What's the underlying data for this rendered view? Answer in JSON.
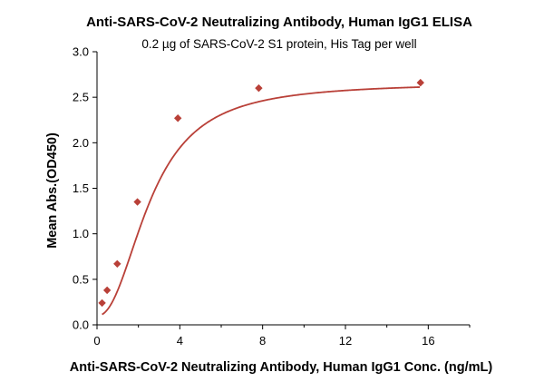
{
  "chart_data": {
    "type": "scatter",
    "title": "Anti-SARS-CoV-2 Neutralizing Antibody, Human IgG1 ELISA",
    "subtitle": "0.2 µg of SARS-CoV-2 S1 protein, His Tag per well",
    "xlabel": "Anti-SARS-CoV-2 Neutralizing Antibody, Human IgG1 Conc. (ng/mL)",
    "ylabel": "Mean Abs.(OD450)",
    "xlim": [
      0,
      18
    ],
    "ylim": [
      0,
      3.0
    ],
    "xticks": [
      "0",
      "4",
      "8",
      "12",
      "16"
    ],
    "yticks": [
      "0.0",
      "0.5",
      "1.0",
      "1.5",
      "2.0",
      "2.5",
      "3.0"
    ],
    "grid": false,
    "legend": "none",
    "series": [
      {
        "x": [
          0.244,
          0.488,
          0.977,
          1.953,
          3.906,
          7.813,
          15.625
        ],
        "y": [
          0.24,
          0.38,
          0.67,
          1.35,
          2.27,
          2.6,
          2.66
        ],
        "marker": "diamond",
        "fit": "4PL",
        "color": "#B94038"
      }
    ]
  }
}
